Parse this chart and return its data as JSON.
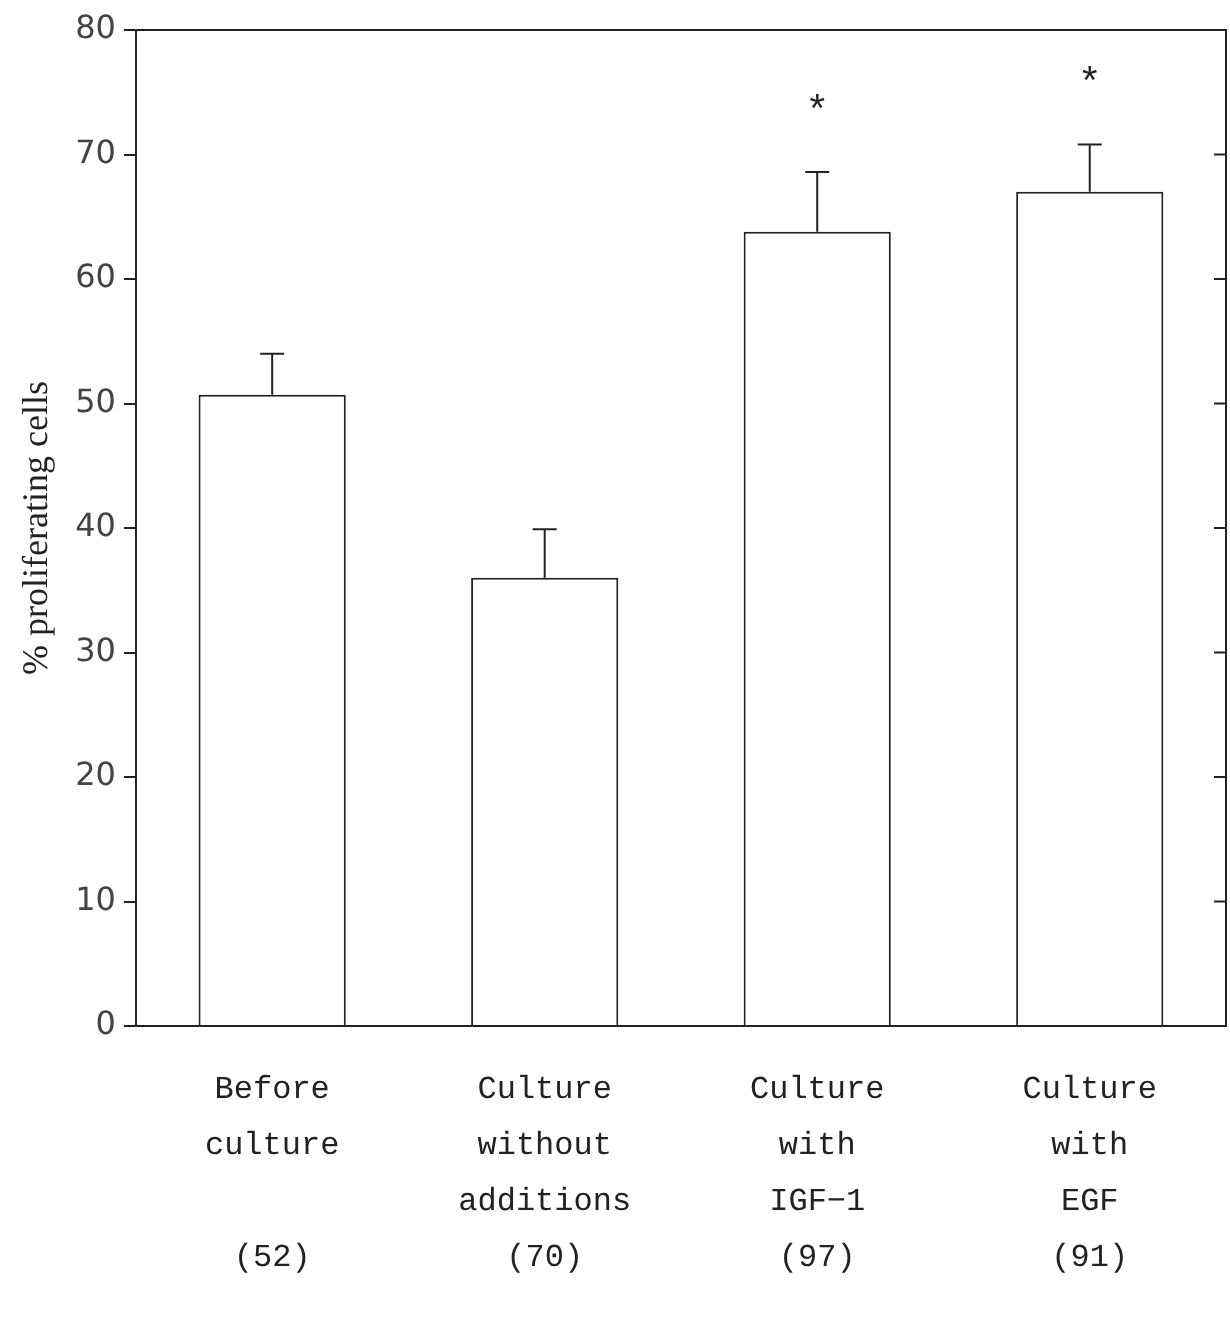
{
  "chart_data": {
    "type": "bar",
    "ylabel": "% proliferating cells",
    "categories": [
      "Before\nculture\n\n(52)",
      "Culture\nwithout\nadditions\n(70)",
      "Culture\nwith\nIGF−1\n(97)",
      "Culture\nwith\nEGF\n(91)"
    ],
    "values": [
      50.7,
      36.0,
      63.8,
      67.0
    ],
    "color": "#ffffff",
    "errors": [
      [
        50.7,
        54.0
      ],
      [
        36.0,
        39.9
      ],
      [
        63.8,
        68.6
      ],
      [
        67.0,
        70.8
      ]
    ],
    "ylim": [
      0,
      80
    ],
    "yticks": [
      0,
      10,
      20,
      30,
      40,
      50,
      60,
      70,
      80
    ],
    "grid": false,
    "legend": false,
    "value_labels": [
      null,
      null,
      "*",
      "*"
    ]
  }
}
